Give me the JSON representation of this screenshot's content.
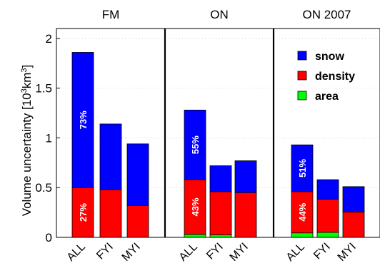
{
  "chart_data": {
    "type": "bar",
    "stacked": true,
    "ylabel": "Volume uncertainty [10^3km^3]",
    "ylim": [
      0,
      2.1
    ],
    "yticks": [
      "0",
      "0.5",
      "1",
      "1.5",
      "2"
    ],
    "yticks_values": [
      0,
      0.5,
      1,
      1.5,
      2
    ],
    "grid": "dotted",
    "legend": {
      "placement": "top-right of third panel",
      "entries": [
        {
          "name": "snow",
          "color": "#0000ff"
        },
        {
          "name": "density",
          "color": "#ff0000"
        },
        {
          "name": "area",
          "color": "#00ff00"
        }
      ]
    },
    "series_order_bottom_to_top": [
      "area",
      "density",
      "snow"
    ],
    "panels": [
      {
        "title": "FM",
        "categories": [
          "ALL",
          "FYI",
          "MYI"
        ],
        "area": [
          0,
          0,
          0
        ],
        "density": [
          0.5,
          0.48,
          0.32
        ],
        "snow": [
          1.36,
          0.66,
          0.62
        ],
        "percent_labels": {
          "snow": "73%",
          "density": "27%",
          "area": ""
        }
      },
      {
        "title": "ON",
        "categories": [
          "ALL",
          "FYI",
          "MYI"
        ],
        "area": [
          0.03,
          0.025,
          0
        ],
        "density": [
          0.55,
          0.435,
          0.45
        ],
        "snow": [
          0.7,
          0.26,
          0.32
        ],
        "percent_labels": {
          "snow": "55%",
          "density": "43%",
          "area": ""
        }
      },
      {
        "title": "ON 2007",
        "categories": [
          "ALL",
          "FYI",
          "MYI"
        ],
        "area": [
          0.045,
          0.05,
          0
        ],
        "density": [
          0.415,
          0.335,
          0.255
        ],
        "snow": [
          0.47,
          0.195,
          0.255
        ],
        "percent_labels": {
          "snow": "51%",
          "density": "44%",
          "area": ""
        }
      }
    ]
  },
  "ylabel_parts": {
    "main": "Volume uncertainty [10",
    "sup1": "3",
    "mid": "km",
    "sup2": "3",
    "end": "]"
  }
}
